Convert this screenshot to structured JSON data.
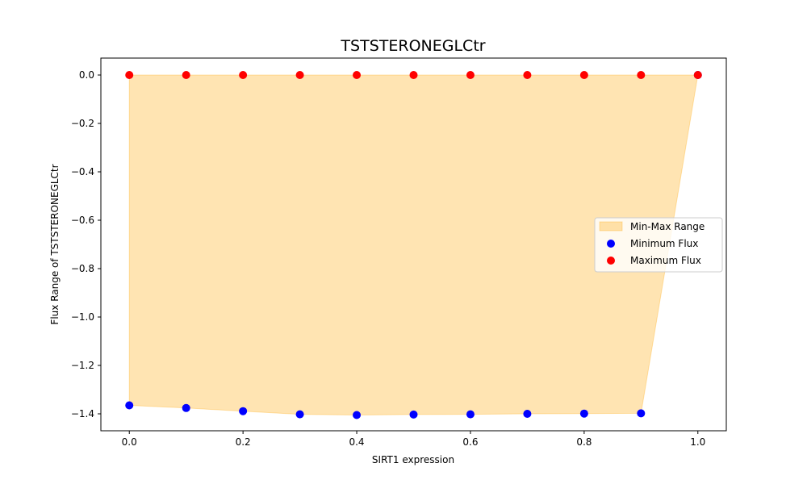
{
  "chart_data": {
    "type": "scatter",
    "title": "TSTSTERONEGLCtr",
    "xlabel": "SIRT1 expression",
    "ylabel": "Flux Range of TSTSTERONEGLCtr",
    "xlim": [
      -0.05,
      1.05
    ],
    "ylim": [
      -1.47,
      0.07
    ],
    "x": [
      0.0,
      0.1,
      0.2,
      0.3,
      0.4,
      0.5,
      0.6,
      0.7,
      0.8,
      0.9,
      1.0
    ],
    "series": [
      {
        "name": "Minimum Flux",
        "color": "#0000ff",
        "values": [
          -1.365,
          -1.376,
          -1.389,
          -1.402,
          -1.405,
          -1.403,
          -1.402,
          -1.4,
          -1.399,
          -1.398,
          0.0
        ]
      },
      {
        "name": "Maximum Flux",
        "color": "#ff0000",
        "values": [
          0.0,
          0.0,
          0.0,
          0.0,
          0.0,
          0.0,
          0.0,
          0.0,
          0.0,
          0.0,
          0.0
        ]
      }
    ],
    "fill": {
      "name": "Min-Max Range",
      "color": "#ffa500",
      "alpha": 0.3
    },
    "xticks": [
      0.0,
      0.2,
      0.4,
      0.6,
      0.8,
      1.0
    ],
    "xtick_labels": [
      "0.0",
      "0.2",
      "0.4",
      "0.6",
      "0.8",
      "1.0"
    ],
    "yticks": [
      0.0,
      -0.2,
      -0.4,
      -0.6,
      -0.8,
      -1.0,
      -1.2,
      -1.4
    ],
    "ytick_labels": [
      "0.0",
      "−0.2",
      "−0.4",
      "−0.6",
      "−0.8",
      "−1.0",
      "−1.2",
      "−1.4"
    ],
    "legend": {
      "placement": "center-right",
      "entries": [
        "Min-Max Range",
        "Minimum Flux",
        "Maximum Flux"
      ]
    },
    "grid": false
  }
}
